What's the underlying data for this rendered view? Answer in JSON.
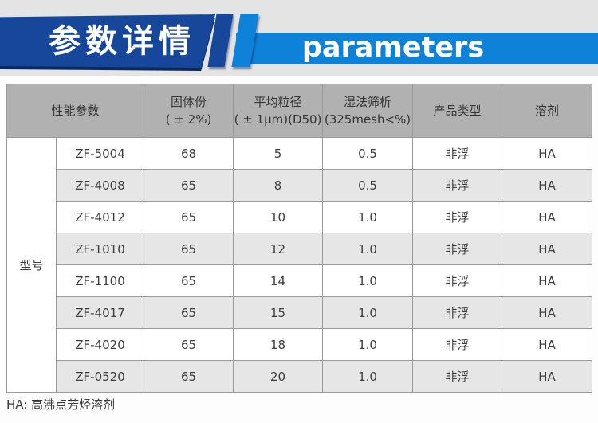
{
  "banner": {
    "title_cn": "参数详情",
    "title_en": "parameters",
    "colors": {
      "dark_blue": "#17479b",
      "light_blue": "#0e81d8",
      "shadow_navy": "#0a2a5e"
    }
  },
  "table": {
    "row_group_label": "型号",
    "headers": {
      "performance": "性能参数",
      "solid": {
        "line1": "固体份",
        "line2": "( ± 2%)"
      },
      "size": {
        "line1": "平均粒径",
        "line2": "( ± 1μm)(D50)"
      },
      "sieve": {
        "line1": "湿法筛析",
        "line2": "(325mesh<%)"
      },
      "type": "产品类型",
      "solvent": "溶剂"
    },
    "rows": [
      {
        "model": "ZF-5004",
        "solid_content": "68",
        "particle_size": "5",
        "wet_sieve": "0.5",
        "product_type": "非浮",
        "solvent": "HA"
      },
      {
        "model": "ZF-4008",
        "solid_content": "65",
        "particle_size": "8",
        "wet_sieve": "0.5",
        "product_type": "非浮",
        "solvent": "HA"
      },
      {
        "model": "ZF-4012",
        "solid_content": "65",
        "particle_size": "10",
        "wet_sieve": "1.0",
        "product_type": "非浮",
        "solvent": "HA"
      },
      {
        "model": "ZF-1010",
        "solid_content": "65",
        "particle_size": "12",
        "wet_sieve": "1.0",
        "product_type": "非浮",
        "solvent": "HA"
      },
      {
        "model": "ZF-1100",
        "solid_content": "65",
        "particle_size": "14",
        "wet_sieve": "1.0",
        "product_type": "非浮",
        "solvent": "HA"
      },
      {
        "model": "ZF-4017",
        "solid_content": "65",
        "particle_size": "15",
        "wet_sieve": "1.0",
        "product_type": "非浮",
        "solvent": "HA"
      },
      {
        "model": "ZF-4020",
        "solid_content": "65",
        "particle_size": "18",
        "wet_sieve": "1.0",
        "product_type": "非浮",
        "solvent": "HA"
      },
      {
        "model": "ZF-0520",
        "solid_content": "65",
        "particle_size": "20",
        "wet_sieve": "1.0",
        "product_type": "非浮",
        "solvent": "HA"
      }
    ],
    "footnote": "HA: 高沸点芳烃溶剂"
  }
}
